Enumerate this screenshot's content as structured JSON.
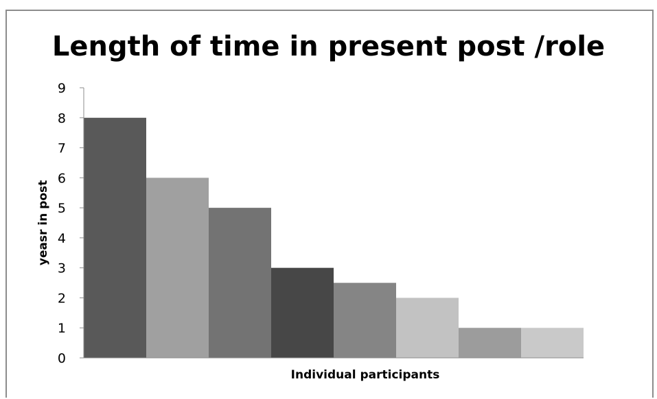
{
  "chart_data": {
    "type": "bar",
    "title": "Length of time in present post /role",
    "xlabel": "Individual participants",
    "ylabel": "yeasr in post",
    "categories": [
      "",
      "",
      "",
      "",
      "",
      "",
      "",
      ""
    ],
    "values": [
      8,
      6,
      5,
      3,
      2.5,
      2,
      1,
      1
    ],
    "bar_colors": [
      "#595959",
      "#a0a0a0",
      "#737373",
      "#474747",
      "#858585",
      "#c2c2c2",
      "#9c9c9c",
      "#c9c9c9"
    ],
    "ylim": [
      0,
      9
    ],
    "yticks": [
      "0",
      "1",
      "2",
      "3",
      "4",
      "5",
      "6",
      "7",
      "8",
      "9"
    ],
    "grid": false,
    "legend": false
  }
}
